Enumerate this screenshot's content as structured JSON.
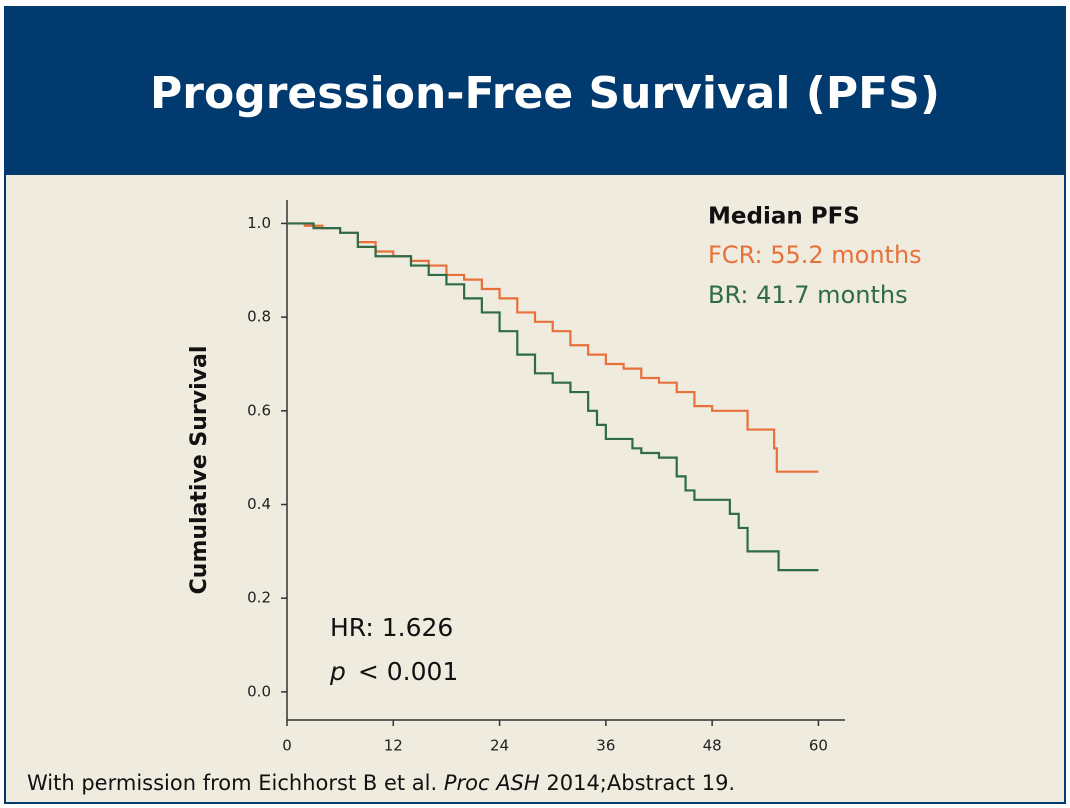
{
  "chart_data": {
    "type": "line",
    "step": true,
    "title": "Progression-Free Survival (PFS)",
    "ylabel": "Cumulative Survival",
    "xlim": [
      0,
      63
    ],
    "ylim": [
      -0.06,
      1.05
    ],
    "xticks": [
      0,
      12,
      24,
      36,
      48,
      60
    ],
    "yticks": [
      {
        "value": 0,
        "label": "0.0"
      },
      {
        "value": 0.2,
        "label": "0.2"
      },
      {
        "value": 0.4,
        "label": "0.4"
      },
      {
        "value": 0.6,
        "label": "0.6"
      },
      {
        "value": 0.8,
        "label": "0.8"
      },
      {
        "value": 1,
        "label": "1.0"
      }
    ],
    "legend_title": "Median PFS",
    "series": [
      {
        "name": "FCR: 55.2 months",
        "color": "#e8703a",
        "x": [
          0,
          2,
          4,
          6,
          8,
          10,
          12,
          14,
          16,
          18,
          20,
          22,
          24,
          26,
          28,
          30,
          32,
          34,
          36,
          38,
          40,
          42,
          44,
          46,
          48,
          51.5,
          52,
          54,
          55,
          55.3,
          60
        ],
        "values": [
          1.0,
          0.995,
          0.99,
          0.98,
          0.96,
          0.94,
          0.93,
          0.92,
          0.91,
          0.89,
          0.88,
          0.86,
          0.84,
          0.81,
          0.79,
          0.77,
          0.74,
          0.72,
          0.7,
          0.69,
          0.67,
          0.66,
          0.64,
          0.61,
          0.6,
          0.6,
          0.56,
          0.56,
          0.52,
          0.47,
          0.47
        ]
      },
      {
        "name": "BR: 41.7 months",
        "color": "#2e6b46",
        "x": [
          0,
          3,
          6,
          8,
          10,
          14,
          16,
          18,
          20,
          22,
          24,
          26,
          28,
          30,
          32,
          34,
          35,
          36,
          38,
          39,
          40,
          42,
          44,
          45,
          46,
          48,
          50,
          51,
          52,
          55,
          55.5,
          60
        ],
        "values": [
          1.0,
          0.99,
          0.98,
          0.95,
          0.93,
          0.91,
          0.89,
          0.87,
          0.84,
          0.81,
          0.77,
          0.72,
          0.68,
          0.66,
          0.64,
          0.6,
          0.57,
          0.54,
          0.54,
          0.52,
          0.51,
          0.5,
          0.46,
          0.43,
          0.41,
          0.41,
          0.38,
          0.35,
          0.3,
          0.3,
          0.26,
          0.26
        ]
      }
    ],
    "annotations": {
      "hr": "HR: 1.626",
      "p_symbol": "p",
      "p_text": "< 0.001"
    }
  },
  "footer": {
    "before": "With permission from Eichhorst B et al. ",
    "italic": "Proc ASH",
    "after": " 2014;Abstract 19."
  }
}
